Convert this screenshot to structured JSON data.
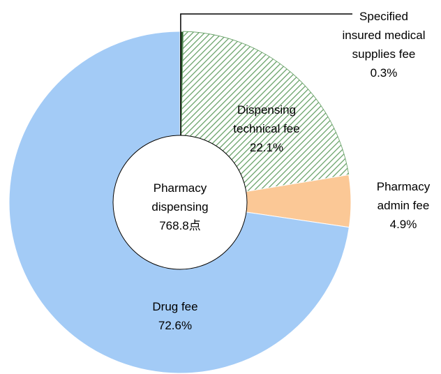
{
  "chart_data": {
    "type": "donut",
    "categories": [
      "Specified insured medical supplies fee",
      "Dispensing technical fee",
      "Pharmacy admin fee",
      "Drug fee"
    ],
    "values": [
      0.3,
      22.1,
      4.9,
      72.6
    ],
    "value_labels": [
      "0.3%",
      "22.1%",
      "4.9%",
      "72.6%"
    ],
    "colors": [
      "#2e5d2e",
      "#5f9c5f",
      "#fbc896",
      "#a3cbf6"
    ],
    "center_text": [
      "Pharmacy",
      "dispensing",
      "768.8点"
    ]
  }
}
